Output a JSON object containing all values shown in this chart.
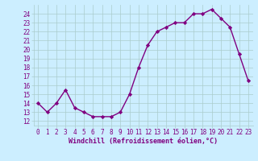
{
  "x": [
    0,
    1,
    2,
    3,
    4,
    5,
    6,
    7,
    8,
    9,
    10,
    11,
    12,
    13,
    14,
    15,
    16,
    17,
    18,
    19,
    20,
    21,
    22,
    23
  ],
  "y": [
    14,
    13,
    14,
    15.5,
    13.5,
    13,
    12.5,
    12.5,
    12.5,
    13,
    15,
    18,
    20.5,
    22,
    22.5,
    23,
    23,
    24,
    24,
    24.5,
    23.5,
    22.5,
    19.5,
    16.5
  ],
  "line_color": "#800080",
  "marker": "D",
  "marker_size": 2.2,
  "bg_color": "#cceeff",
  "grid_color": "#aacccc",
  "xlabel": "Windchill (Refroidissement éolien,°C)",
  "xlim": [
    -0.5,
    23.5
  ],
  "ylim": [
    11.5,
    25
  ],
  "yticks": [
    12,
    13,
    14,
    15,
    16,
    17,
    18,
    19,
    20,
    21,
    22,
    23,
    24
  ],
  "xticks": [
    0,
    1,
    2,
    3,
    4,
    5,
    6,
    7,
    8,
    9,
    10,
    11,
    12,
    13,
    14,
    15,
    16,
    17,
    18,
    19,
    20,
    21,
    22,
    23
  ],
  "font_color": "#800080",
  "tick_fontsize": 5.5,
  "xlabel_fontsize": 6.0
}
